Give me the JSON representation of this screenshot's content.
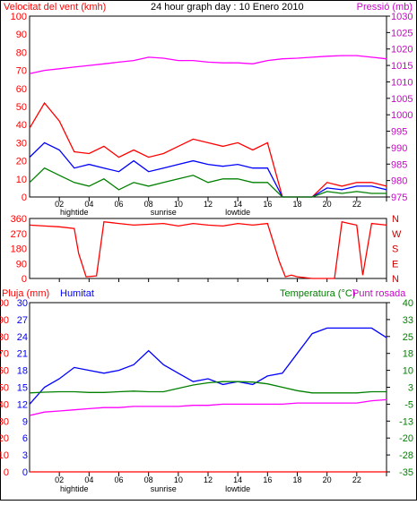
{
  "chart_data": [
    {
      "type": "line",
      "title": "24 hour graph day : 10 Enero 2010",
      "ylabel_left": "Velocitat del vent (kmh)",
      "ylabel_right": "Pressió (mb)",
      "ylim_left": [
        0,
        100
      ],
      "ylim_right": [
        975,
        1030
      ],
      "yticks_left": [
        "0",
        "10",
        "20",
        "30",
        "40",
        "50",
        "60",
        "70",
        "80",
        "90",
        "100"
      ],
      "yticks_right": [
        "975",
        "980",
        "985",
        "990",
        "995",
        "1000",
        "1005",
        "1010",
        "1015",
        "1020",
        "1025",
        "1030"
      ],
      "xticks": [
        "02",
        "04",
        "06",
        "08",
        "10",
        "12",
        "14",
        "16",
        "18",
        "20",
        "22",
        ""
      ],
      "events": [
        "hightide",
        "sunrise",
        "lowtide"
      ],
      "event_hours": [
        3.0,
        9.0,
        14.0
      ],
      "x": [
        0,
        1,
        2,
        3,
        4,
        5,
        6,
        7,
        8,
        9,
        10,
        11,
        12,
        13,
        14,
        15,
        16,
        17,
        18,
        19,
        20,
        21,
        22,
        23,
        24
      ],
      "series": [
        {
          "name": "",
          "color": "#ff0000",
          "values": [
            38,
            52,
            42,
            25,
            24,
            28,
            22,
            26,
            22,
            24,
            28,
            32,
            30,
            28,
            30,
            26,
            30,
            0,
            0,
            0,
            8,
            6,
            8,
            8,
            6
          ],
          "axis": "left"
        },
        {
          "name": "",
          "color": "#0000ff",
          "values": [
            22,
            30,
            26,
            16,
            18,
            16,
            14,
            20,
            14,
            16,
            18,
            20,
            18,
            17,
            18,
            16,
            16,
            0,
            0,
            0,
            5,
            4,
            6,
            6,
            4
          ],
          "axis": "left"
        },
        {
          "name": "",
          "color": "#008000",
          "values": [
            8,
            16,
            12,
            8,
            6,
            10,
            4,
            8,
            6,
            8,
            10,
            12,
            8,
            10,
            10,
            8,
            8,
            0,
            0,
            0,
            3,
            2,
            3,
            2,
            2
          ],
          "axis": "left"
        },
        {
          "name": "",
          "color": "#ff00ff",
          "values": [
            1012.5,
            1013.5,
            1014,
            1014.5,
            1015,
            1015.5,
            1016,
            1016.5,
            1017.5,
            1017.2,
            1016.5,
            1016.5,
            1016,
            1015.8,
            1015.8,
            1015.5,
            1016.5,
            1017,
            1017.2,
            1017.5,
            1017.8,
            1018,
            1018,
            1017.5,
            1017
          ],
          "axis": "right"
        }
      ]
    },
    {
      "type": "line",
      "ylim": [
        0,
        360
      ],
      "yticks_left": [
        "0",
        "90",
        "180",
        "270",
        "360"
      ],
      "yticks_right": [
        "N",
        "W",
        "S",
        "E",
        "N"
      ],
      "xticks": [
        "",
        "",
        "",
        "",
        "",
        "",
        "",
        "",
        "",
        "",
        "",
        ""
      ],
      "x": [
        0,
        1,
        2,
        3,
        3.3,
        3.8,
        4.5,
        5,
        6,
        7,
        8,
        9,
        10,
        11,
        12,
        13,
        14,
        15,
        16,
        16.8,
        17.2,
        17.6,
        18,
        19,
        20,
        20.5,
        21,
        21.5,
        22,
        22.4,
        23,
        24
      ],
      "series": [
        {
          "name": "",
          "color": "#ff0000",
          "values": [
            320,
            315,
            310,
            300,
            150,
            10,
            15,
            340,
            330,
            320,
            325,
            330,
            315,
            330,
            320,
            315,
            330,
            320,
            330,
            100,
            10,
            20,
            10,
            0,
            0,
            0,
            340,
            330,
            320,
            20,
            330,
            320
          ]
        }
      ]
    },
    {
      "type": "line",
      "ylabel_left": "Pluja (mm)",
      "ylabel_left2": "Humitat",
      "ylabel_right": "Temperatura (°C)",
      "ylabel_right2": "Punt rosada",
      "ylim_left": [
        0,
        100
      ],
      "ylim_right": [
        -35,
        40
      ],
      "yticks_left": [
        "0",
        "10",
        "20",
        "30",
        "40",
        "50",
        "60",
        "70",
        "80",
        "90",
        "100"
      ],
      "yticks_left2": [
        "0",
        "3",
        "6",
        "9",
        "12",
        "15",
        "18",
        "21",
        "24",
        "27",
        "30"
      ],
      "yticks_right": [
        "-35",
        "-28",
        "-20",
        "-13",
        "-5",
        "3",
        "10",
        "18",
        "25",
        "33",
        "40"
      ],
      "xticks": [
        "02",
        "04",
        "06",
        "08",
        "10",
        "12",
        "14",
        "16",
        "18",
        "20",
        "22",
        ""
      ],
      "events": [
        "hightide",
        "sunrise",
        "lowtide"
      ],
      "event_hours": [
        3.0,
        9.0,
        14.0
      ],
      "x": [
        0,
        1,
        2,
        3,
        4,
        5,
        6,
        7,
        8,
        9,
        10,
        11,
        12,
        13,
        14,
        15,
        16,
        17,
        18,
        19,
        20,
        21,
        22,
        23,
        24
      ],
      "series": [
        {
          "name": "Pluja (mm)",
          "color": "#ff0000",
          "values": [
            0,
            0,
            0,
            0,
            0,
            0,
            0,
            0,
            0,
            0,
            0,
            0,
            0,
            0,
            0,
            0,
            0,
            0,
            0,
            0,
            0,
            0,
            0,
            0,
            0
          ],
          "axis": "left"
        },
        {
          "name": "Humitat",
          "color": "#0000ff",
          "values": [
            12,
            15,
            16.5,
            18.5,
            18,
            17.5,
            18,
            19,
            21.5,
            19,
            17.5,
            16,
            16.5,
            15.5,
            16,
            15.5,
            17,
            17.5,
            21,
            24.5,
            25.5,
            25.5,
            25.5,
            25.5,
            23.8
          ],
          "axis": "left2"
        },
        {
          "name": "Temperatura (°C)",
          "color": "#008000",
          "values": [
            0,
            0.3,
            0.5,
            0.5,
            0.2,
            0.2,
            0.5,
            0.8,
            0.5,
            0.5,
            2,
            3.5,
            4.5,
            5,
            5,
            4.8,
            4,
            2.5,
            1,
            0,
            0,
            0,
            0,
            0.5,
            0.5
          ],
          "axis": "right"
        },
        {
          "name": "Punt rosada",
          "color": "#ff00ff",
          "values": [
            -10,
            -8.5,
            -8,
            -7.5,
            -7,
            -6.5,
            -6.5,
            -6,
            -6,
            -6,
            -6,
            -5.5,
            -5.5,
            -5,
            -5,
            -5,
            -5,
            -5,
            -4.5,
            -4.5,
            -4.5,
            -4.5,
            -4.5,
            -3.5,
            -3
          ],
          "axis": "right"
        }
      ]
    }
  ]
}
